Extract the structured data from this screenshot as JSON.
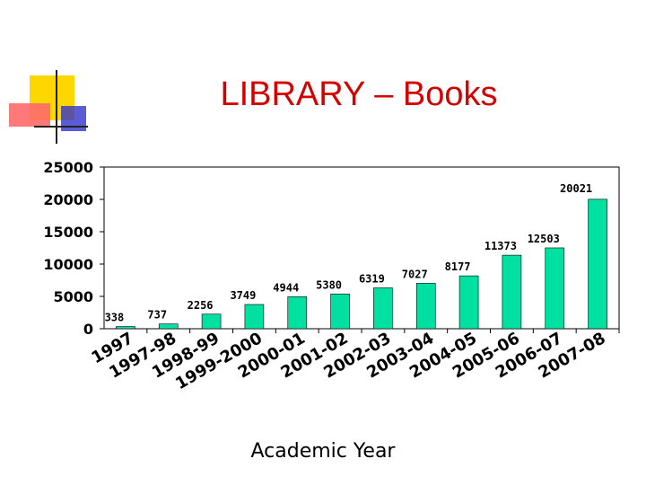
{
  "slide": {
    "title": "LIBRARY – Books"
  },
  "colors": {
    "bar": "#00e0a0",
    "title": "#d40000",
    "deco_yellow": "#ffd700",
    "deco_red": "#ff6060",
    "deco_blue": "#3333cc"
  },
  "chart_data": {
    "type": "bar",
    "title": "",
    "xlabel": "Academic Year",
    "ylabel": "",
    "ylim": [
      0,
      25000
    ],
    "yticks": [
      0,
      5000,
      10000,
      15000,
      20000,
      25000
    ],
    "grid": false,
    "categories": [
      "1997",
      "1997-98",
      "1998-99",
      "1999-2000",
      "2000-01",
      "2001-02",
      "2002-03",
      "2003-04",
      "2004-05",
      "2005-06",
      "2006-07",
      "2007-08"
    ],
    "values": [
      338,
      737,
      2256,
      3749,
      4944,
      5380,
      6319,
      7027,
      8177,
      11373,
      12503,
      20021
    ]
  }
}
